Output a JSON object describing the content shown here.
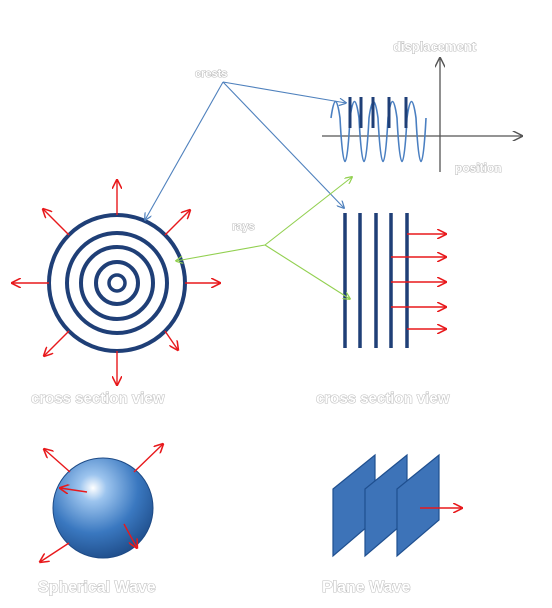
{
  "labels": {
    "displacement": "displacement",
    "crests": "crests",
    "position": "position",
    "rays": "rays",
    "cross_section_view_left": "cross section view",
    "cross_section_view_right": "cross section view",
    "spherical_wave": "Spherical Wave",
    "plane_wave": "Plane Wave"
  },
  "colors": {
    "wavefront": "#1f3f77",
    "crest_arrow": "#4f81bd",
    "ray_arrow": "#e8191c",
    "pointer_line": "#92d050",
    "sphere": "#3a78c0",
    "plane": "#3d73b8",
    "axis": "#555555",
    "oscillation": "#4a7fc1"
  }
}
